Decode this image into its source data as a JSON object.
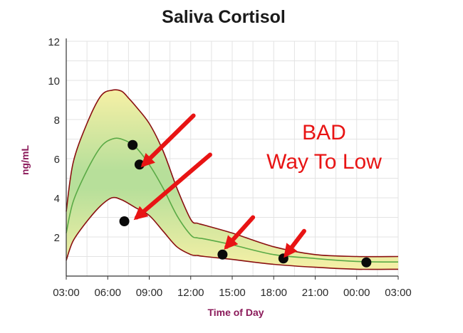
{
  "chart_data": {
    "type": "line",
    "title": "Saliva Cortisol",
    "xlabel": "Time of Day",
    "ylabel": "ng/mL",
    "x_ticks": [
      "03:00",
      "06:00",
      "09:00",
      "12:00",
      "15:00",
      "18:00",
      "21:00",
      "00:00",
      "03:00"
    ],
    "y_ticks": [
      "2",
      "4",
      "6",
      "8",
      "10",
      "12"
    ],
    "xlim": [
      3,
      27
    ],
    "ylim": [
      0,
      12
    ],
    "grid": true,
    "colors": {
      "axis_label": "#8b1a5a",
      "band_edge": "#8a1010",
      "band_center": "#b7df9a",
      "band_outer": "#f6f0a6",
      "mean_line": "#5aaa46",
      "points": "#0a0a0a",
      "annotation": "#e81414",
      "grid": "#e3e3e3"
    },
    "series": [
      {
        "kind": "upper",
        "x": [
          3.0,
          3.5,
          4.5,
          5.5,
          6.3,
          7.0,
          7.5,
          8.0,
          9.0,
          10.0,
          11.0,
          12.0,
          12.5,
          13.0,
          15.0,
          18.0,
          21.0,
          24.0,
          27.0
        ],
        "y": [
          3.3,
          5.8,
          7.8,
          9.2,
          9.5,
          9.45,
          9.1,
          8.7,
          7.8,
          6.4,
          4.5,
          2.9,
          2.7,
          2.6,
          2.2,
          1.5,
          1.1,
          1.0,
          1.0
        ]
      },
      {
        "kind": "mean",
        "x": [
          3.0,
          3.5,
          4.5,
          5.5,
          6.3,
          7.0,
          8.0,
          9.0,
          10.0,
          11.0,
          12.0,
          12.5,
          13.0,
          15.0,
          18.0,
          21.0,
          24.0,
          27.0
        ],
        "y": [
          2.2,
          3.8,
          5.4,
          6.6,
          7.0,
          7.0,
          6.6,
          5.7,
          4.5,
          3.1,
          2.1,
          1.95,
          1.9,
          1.6,
          1.1,
          0.9,
          0.75,
          0.72
        ]
      },
      {
        "kind": "lower",
        "x": [
          3.0,
          3.5,
          4.5,
          5.5,
          6.3,
          7.0,
          8.0,
          9.0,
          10.0,
          11.0,
          12.0,
          12.5,
          13.0,
          15.0,
          18.0,
          21.0,
          24.0,
          27.0
        ],
        "y": [
          0.8,
          1.8,
          2.8,
          3.6,
          4.0,
          3.9,
          3.5,
          3.1,
          2.3,
          1.5,
          1.1,
          1.05,
          1.0,
          0.85,
          0.6,
          0.45,
          0.35,
          0.35
        ]
      }
    ],
    "points": {
      "x": [
        7.2,
        7.8,
        8.3,
        14.3,
        18.7,
        24.7
      ],
      "y": [
        2.8,
        6.7,
        5.7,
        1.1,
        0.9,
        0.7
      ]
    },
    "annotations": {
      "text_lines": [
        "BAD",
        "Way To Low"
      ],
      "arrows": [
        {
          "from": [
            12.2,
            8.2
          ],
          "to": [
            8.6,
            5.7
          ]
        },
        {
          "from": [
            13.4,
            6.2
          ],
          "to": [
            8.1,
            3.0
          ]
        },
        {
          "from": [
            16.5,
            3.0
          ],
          "to": [
            14.6,
            1.5
          ]
        },
        {
          "from": [
            20.2,
            2.3
          ],
          "to": [
            18.9,
            1.1
          ]
        }
      ]
    }
  }
}
